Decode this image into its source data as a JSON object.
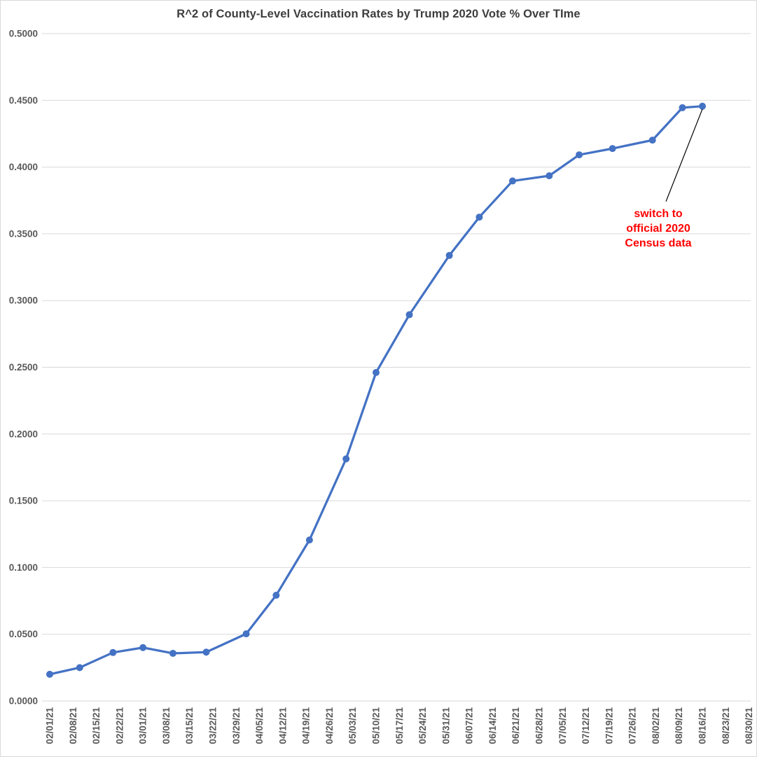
{
  "chart_data": {
    "type": "line",
    "title": "R^2 of County-Level Vaccination Rates by Trump 2020 Vote % Over TIme",
    "x_axis": {
      "kind": "date",
      "start": "02/01/21",
      "end": "08/30/21",
      "tick_labels": [
        "02/01/21",
        "02/08/21",
        "02/15/21",
        "02/22/21",
        "03/01/21",
        "03/08/21",
        "03/15/21",
        "03/22/21",
        "03/29/21",
        "04/05/21",
        "04/12/21",
        "04/19/21",
        "04/26/21",
        "05/03/21",
        "05/10/21",
        "05/17/21",
        "05/24/21",
        "05/31/21",
        "06/07/21",
        "06/14/21",
        "06/21/21",
        "06/28/21",
        "07/05/21",
        "07/12/21",
        "07/19/21",
        "07/26/21",
        "08/02/21",
        "08/09/21",
        "08/16/21",
        "08/23/21",
        "08/30/21"
      ]
    },
    "y_axis": {
      "min": 0.0,
      "max": 0.5,
      "step": 0.05,
      "tick_labels": [
        "0.5000",
        "0.4500",
        "0.4000",
        "0.3500",
        "0.3000",
        "0.2500",
        "0.2000",
        "0.1500",
        "0.1000",
        "0.0500",
        "0.0000"
      ]
    },
    "grid": "horizontal-only",
    "legend": "none",
    "series": [
      {
        "name": "R^2",
        "marker": "circle",
        "points": [
          {
            "date": "02/01/21",
            "value": 0.02
          },
          {
            "date": "02/10/21",
            "value": 0.025
          },
          {
            "date": "02/20/21",
            "value": 0.0363
          },
          {
            "date": "03/01/21",
            "value": 0.04
          },
          {
            "date": "03/10/21",
            "value": 0.0357
          },
          {
            "date": "03/20/21",
            "value": 0.0366
          },
          {
            "date": "04/01/21",
            "value": 0.0503
          },
          {
            "date": "04/10/21",
            "value": 0.0792
          },
          {
            "date": "04/20/21",
            "value": 0.1206
          },
          {
            "date": "05/01/21",
            "value": 0.1814
          },
          {
            "date": "05/10/21",
            "value": 0.2461
          },
          {
            "date": "05/20/21",
            "value": 0.2894
          },
          {
            "date": "06/01/21",
            "value": 0.3338
          },
          {
            "date": "06/10/21",
            "value": 0.3625
          },
          {
            "date": "06/20/21",
            "value": 0.3896
          },
          {
            "date": "07/01/21",
            "value": 0.3935
          },
          {
            "date": "07/10/21",
            "value": 0.4092
          },
          {
            "date": "07/20/21",
            "value": 0.4139
          },
          {
            "date": "08/01/21",
            "value": 0.4202
          },
          {
            "date": "08/10/21",
            "value": 0.4445
          },
          {
            "date": "08/16/21",
            "value": 0.4456
          }
        ]
      }
    ],
    "annotation": {
      "lines": [
        "switch to",
        "official 2020",
        "Census data"
      ],
      "points_to_date": "08/16/21"
    },
    "colors": {
      "series_line": "#4472C4",
      "marker": "#4472C4",
      "gridline": "#D9D9D9",
      "axis_label": "#595959",
      "title": "#3D3D3D",
      "annotation_text": "#FF0000",
      "annotation_line": "#000000",
      "background": "#FFFFFF"
    }
  }
}
